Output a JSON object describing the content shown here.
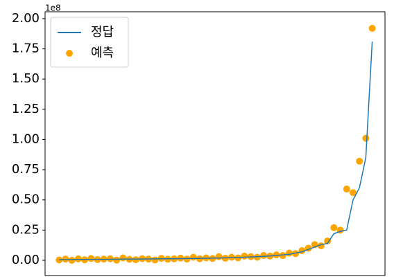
{
  "chart_data": {
    "type": "line_scatter",
    "offset_text": "1e8",
    "x": [
      0,
      1,
      2,
      3,
      4,
      5,
      6,
      7,
      8,
      9,
      10,
      11,
      12,
      13,
      14,
      15,
      16,
      17,
      18,
      19,
      20,
      21,
      22,
      23,
      24,
      25,
      26,
      27,
      28,
      29,
      30,
      31,
      32,
      33,
      34,
      35,
      36,
      37,
      38,
      39,
      40,
      41,
      42,
      43,
      44,
      45,
      46,
      47,
      48,
      49
    ],
    "xlim": [
      -2.2,
      51.0
    ],
    "ylim": [
      -0.126,
      2.057
    ],
    "yticks": [
      {
        "value": 0,
        "label": "0.00"
      },
      0.25,
      {
        "value": 0.5,
        "label": "0.50"
      },
      0.75,
      {
        "value": 1,
        "label": "1.00"
      },
      1.25,
      {
        "value": 1.5,
        "label": "1.50"
      },
      1.75,
      {
        "value": 2,
        "label": "2.00"
      }
    ],
    "legend": "upper left",
    "series": [
      {
        "name": "정답",
        "kind": "line",
        "color": "#1f77b4",
        "values": [
          0.005,
          0.006,
          0.006,
          0.007,
          0.007,
          0.008,
          0.008,
          0.008,
          0.009,
          0.009,
          0.01,
          0.01,
          0.01,
          0.011,
          0.011,
          0.012,
          0.012,
          0.013,
          0.013,
          0.014,
          0.015,
          0.015,
          0.016,
          0.017,
          0.018,
          0.019,
          0.02,
          0.022,
          0.024,
          0.026,
          0.028,
          0.03,
          0.033,
          0.036,
          0.04,
          0.045,
          0.05,
          0.06,
          0.07,
          0.09,
          0.11,
          0.13,
          0.14,
          0.22,
          0.24,
          0.25,
          0.5,
          0.6,
          0.85,
          1.81
        ]
      },
      {
        "name": "예측",
        "kind": "scatter",
        "color": "#ffa500",
        "values": [
          0.003,
          0.01,
          0.0,
          0.012,
          0.004,
          0.015,
          0.006,
          0.01,
          0.013,
          0.002,
          0.02,
          0.008,
          0.005,
          0.014,
          0.01,
          0.003,
          0.016,
          0.009,
          0.012,
          0.018,
          0.01,
          0.025,
          0.013,
          0.02,
          0.015,
          0.03,
          0.017,
          0.025,
          0.02,
          0.035,
          0.03,
          0.025,
          0.04,
          0.035,
          0.045,
          0.04,
          0.06,
          0.055,
          0.08,
          0.1,
          0.13,
          0.12,
          0.16,
          0.27,
          0.25,
          0.59,
          0.56,
          0.82,
          1.01,
          1.92
        ]
      }
    ]
  }
}
